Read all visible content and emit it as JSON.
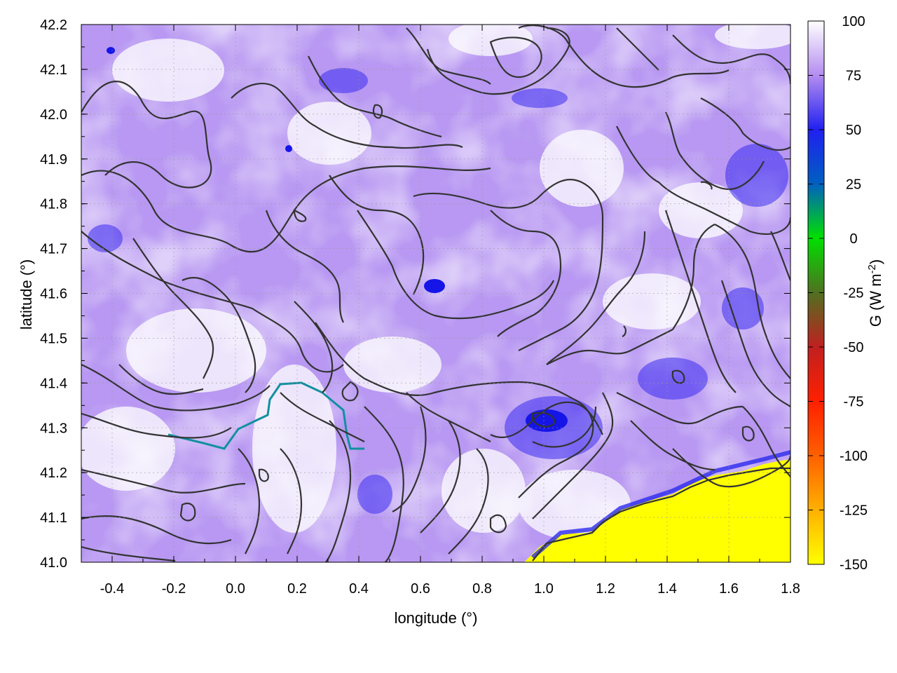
{
  "chart_data": {
    "type": "heatmap",
    "subtype": "map with colour-filled field and contour overlay",
    "xlabel": "longitude (°)",
    "ylabel": "latitude (°)",
    "xlim": [
      -0.5,
      1.8
    ],
    "ylim": [
      41.0,
      42.2
    ],
    "x_ticks": [
      "-0.4",
      "-0.2",
      "0.0",
      "0.2",
      "0.4",
      "0.6",
      "0.8",
      "1.0",
      "1.2",
      "1.4",
      "1.6",
      "1.8"
    ],
    "y_ticks": [
      "41.0",
      "41.1",
      "41.2",
      "41.3",
      "41.4",
      "41.5",
      "41.6",
      "41.7",
      "41.8",
      "41.9",
      "42.0",
      "42.1",
      "42.2"
    ],
    "grid": true,
    "colorbar": {
      "label_main": "G (W m",
      "label_exp": "-2",
      "label_close": ")",
      "range": [
        -150,
        100
      ],
      "ticks": [
        "100",
        "75",
        "50",
        "25",
        "0",
        "-25",
        "-50",
        "-75",
        "-100",
        "-125",
        "-150"
      ],
      "stops": [
        {
          "value": 100,
          "color": "#ffffff"
        },
        {
          "value": 75,
          "color": "#b48cf0"
        },
        {
          "value": 50,
          "color": "#2020f0"
        },
        {
          "value": 25,
          "color": "#0060c0"
        },
        {
          "value": 0,
          "color": "#00e000"
        },
        {
          "value": -25,
          "color": "#507020"
        },
        {
          "value": -50,
          "color": "#c02020"
        },
        {
          "value": -75,
          "color": "#ff2000"
        },
        {
          "value": -100,
          "color": "#ff6000"
        },
        {
          "value": -125,
          "color": "#ffb000"
        },
        {
          "value": -150,
          "color": "#ffff00"
        }
      ]
    },
    "sea_region_value": -150
  }
}
